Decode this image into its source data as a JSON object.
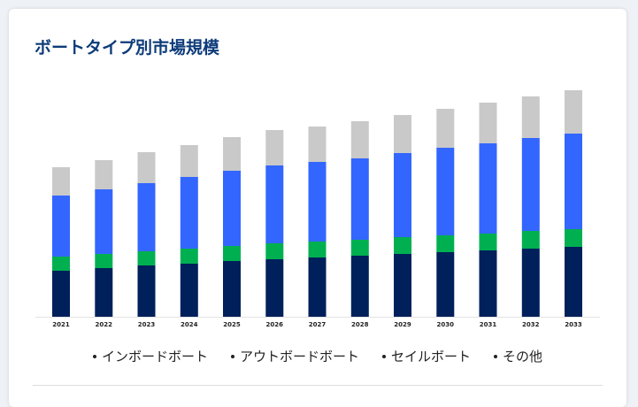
{
  "title": "ボートタイプ別市場規模",
  "colors": {
    "title": "#0d3b7a",
    "inboard": "#00205b",
    "outboard": "#00b050",
    "sail": "#3366ff",
    "other": "#c9c9c9"
  },
  "chart_data": {
    "type": "bar",
    "stacked": true,
    "title": "",
    "xlabel": "",
    "ylabel": "",
    "ylim": [
      0,
      260
    ],
    "grid": false,
    "legend_position": "bottom",
    "categories": [
      "2021",
      "2022",
      "2023",
      "2024",
      "2025",
      "2026",
      "2027",
      "2028",
      "2029",
      "2030",
      "2031",
      "2032",
      "2033"
    ],
    "series": [
      {
        "name": "インボードボート",
        "color": "#00205b",
        "values": [
          52,
          55,
          58,
          60,
          63,
          65,
          67,
          69,
          71,
          73,
          75,
          77,
          79
        ]
      },
      {
        "name": "アウトボードボート",
        "color": "#00b050",
        "values": [
          16,
          16,
          16,
          17,
          17,
          18,
          18,
          18,
          19,
          19,
          19,
          20,
          20
        ]
      },
      {
        "name": "セイルボート",
        "color": "#3366ff",
        "values": [
          69,
          73,
          77,
          81,
          85,
          88,
          90,
          92,
          95,
          99,
          102,
          105,
          108
        ]
      },
      {
        "name": "その他",
        "color": "#c9c9c9",
        "values": [
          32,
          33,
          35,
          36,
          38,
          40,
          40,
          42,
          43,
          44,
          46,
          47,
          49
        ]
      }
    ]
  }
}
